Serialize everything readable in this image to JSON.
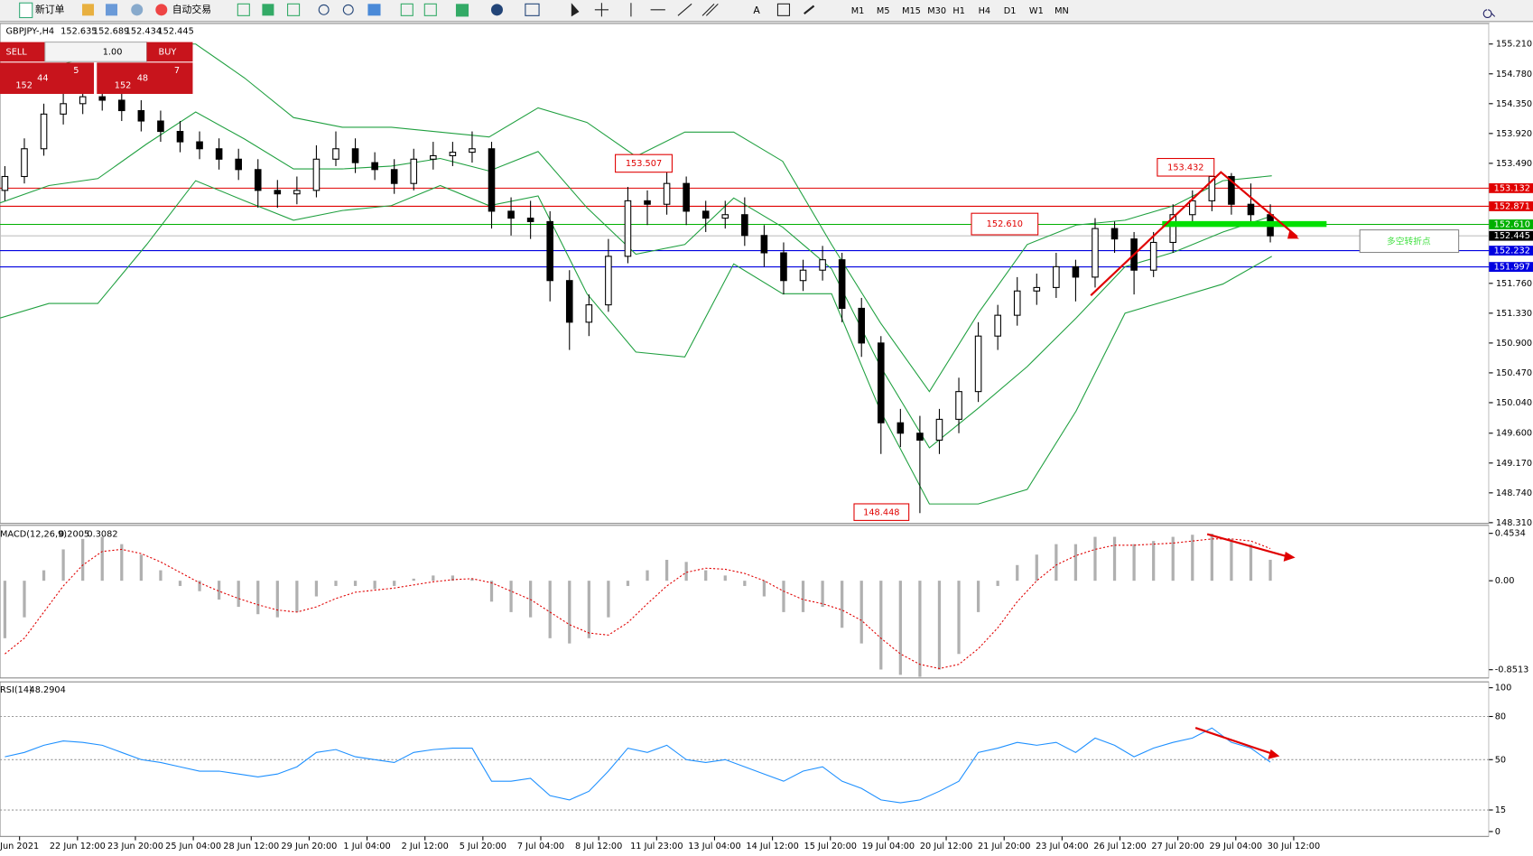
{
  "toolbar": {
    "new_order": "新订单",
    "auto_trading": "自动交易",
    "timeframes": [
      "M1",
      "M5",
      "M15",
      "M30",
      "H1",
      "H4",
      "D1",
      "W1",
      "MN"
    ]
  },
  "chart": {
    "symbol": "GBPJPY-,H4",
    "ohlc": [
      152.635,
      152.689,
      152.434,
      152.445
    ],
    "trade_panel": {
      "sell": "SELL",
      "buy": "BUY",
      "lots": "1.00",
      "sell_big": "152",
      "sell_pips": "44",
      "sell_frac": "5",
      "buy_big": "152",
      "buy_pips": "48",
      "buy_frac": "7"
    },
    "ylim": [
      148.3,
      155.506
    ],
    "price_ticks": [
      {
        "value": 155.21,
        "label": "155.210"
      },
      {
        "value": 154.78,
        "label": "154.780"
      },
      {
        "value": 154.35,
        "label": "154.350"
      },
      {
        "value": 153.92,
        "label": "153.920"
      },
      {
        "value": 153.49,
        "label": "153.490"
      },
      {
        "value": 151.76,
        "label": "151.760"
      },
      {
        "value": 151.33,
        "label": "151.330"
      },
      {
        "value": 150.9,
        "label": "150.900"
      },
      {
        "value": 150.47,
        "label": "150.470"
      },
      {
        "value": 150.04,
        "label": "150.040"
      },
      {
        "value": 149.6,
        "label": "149.600"
      },
      {
        "value": 149.17,
        "label": "149.170"
      },
      {
        "value": 148.74,
        "label": "148.740"
      },
      {
        "value": 148.31,
        "label": "148.310"
      }
    ],
    "levels": [
      {
        "value": 153.132,
        "color": "#e00000"
      },
      {
        "value": 152.871,
        "color": "#e00000"
      },
      {
        "value": 152.61,
        "label": "152.610",
        "color": "#00b000"
      },
      {
        "value": 152.445,
        "color": "#000000"
      },
      {
        "value": 152.232,
        "color": "#0000e0"
      },
      {
        "value": 151.997,
        "color": "#0000e0"
      }
    ],
    "annotations": [
      153.507,
      153.432,
      {
        "value": 152.61,
        "label": "152.610"
      },
      148.448
    ],
    "note": "多空转折点",
    "time_labels": [
      "Jun 2021",
      "22 Jun 12:00",
      "23 Jun 20:00",
      "25 Jun 04:00",
      "28 Jun 12:00",
      "29 Jun 20:00",
      "1 Jul 04:00",
      "2 Jul 12:00",
      "5 Jul 20:00",
      "7 Jul 04:00",
      "8 Jul 12:00",
      "11 Jul 23:00",
      "13 Jul 04:00",
      "14 Jul 12:00",
      "15 Jul 20:00",
      "19 Jul 04:00",
      "20 Jul 12:00",
      "21 Jul 20:00",
      "23 Jul 04:00",
      "26 Jul 12:00",
      "27 Jul 20:00",
      "29 Jul 04:00",
      "30 Jul 12:00"
    ],
    "bars": [
      [
        153.1,
        153.45,
        152.95,
        153.3
      ],
      [
        153.3,
        153.85,
        153.2,
        153.7
      ],
      [
        153.7,
        154.35,
        153.6,
        154.2
      ],
      [
        154.2,
        154.5,
        154.05,
        154.35
      ],
      [
        154.35,
        154.6,
        154.2,
        154.45
      ],
      [
        154.45,
        154.65,
        154.25,
        154.4
      ],
      [
        154.4,
        154.5,
        154.1,
        154.25
      ],
      [
        154.25,
        154.4,
        153.95,
        154.1
      ],
      [
        154.1,
        154.25,
        153.8,
        153.95
      ],
      [
        153.95,
        154.1,
        153.65,
        153.8
      ],
      [
        153.8,
        153.95,
        153.55,
        153.7
      ],
      [
        153.7,
        153.85,
        153.4,
        153.55
      ],
      [
        153.55,
        153.7,
        153.25,
        153.4
      ],
      [
        153.4,
        153.55,
        152.85,
        153.1
      ],
      [
        153.1,
        153.25,
        152.85,
        153.05
      ],
      [
        153.05,
        153.3,
        152.9,
        153.1
      ],
      [
        153.1,
        153.75,
        153.0,
        153.55
      ],
      [
        153.55,
        153.95,
        153.45,
        153.7
      ],
      [
        153.7,
        153.85,
        153.35,
        153.5
      ],
      [
        153.5,
        153.65,
        153.25,
        153.4
      ],
      [
        153.4,
        153.55,
        153.05,
        153.2
      ],
      [
        153.2,
        153.7,
        153.1,
        153.55
      ],
      [
        153.55,
        153.8,
        153.4,
        153.6
      ],
      [
        153.6,
        153.8,
        153.45,
        153.65
      ],
      [
        153.65,
        153.95,
        153.5,
        153.7
      ],
      [
        153.7,
        153.8,
        152.55,
        152.8
      ],
      [
        152.8,
        153.0,
        152.45,
        152.7
      ],
      [
        152.7,
        152.95,
        152.4,
        152.65
      ],
      [
        152.65,
        152.8,
        151.5,
        151.8
      ],
      [
        151.8,
        151.95,
        150.8,
        151.2
      ],
      [
        151.2,
        151.6,
        151.0,
        151.45
      ],
      [
        151.45,
        152.4,
        151.35,
        152.15
      ],
      [
        152.15,
        153.15,
        152.05,
        152.95
      ],
      [
        152.95,
        153.1,
        152.6,
        152.9
      ],
      [
        152.9,
        153.507,
        152.75,
        153.2
      ],
      [
        153.2,
        153.3,
        152.6,
        152.8
      ],
      [
        152.8,
        152.95,
        152.5,
        152.7
      ],
      [
        152.7,
        152.95,
        152.55,
        152.75
      ],
      [
        152.75,
        153.0,
        152.3,
        152.45
      ],
      [
        152.45,
        152.6,
        152.0,
        152.2
      ],
      [
        152.2,
        152.35,
        151.6,
        151.8
      ],
      [
        151.8,
        152.1,
        151.65,
        151.95
      ],
      [
        151.95,
        152.3,
        151.8,
        152.1
      ],
      [
        152.1,
        152.2,
        151.2,
        151.4
      ],
      [
        151.4,
        151.55,
        150.7,
        150.9
      ],
      [
        150.9,
        151.0,
        149.3,
        149.75
      ],
      [
        149.75,
        149.95,
        149.4,
        149.6
      ],
      [
        149.6,
        149.85,
        148.448,
        149.5
      ],
      [
        149.5,
        149.95,
        149.3,
        149.8
      ],
      [
        149.8,
        150.4,
        149.6,
        150.2
      ],
      [
        150.2,
        151.2,
        150.05,
        151.0
      ],
      [
        151.0,
        151.45,
        150.8,
        151.3
      ],
      [
        151.3,
        151.85,
        151.15,
        151.65
      ],
      [
        151.65,
        151.9,
        151.45,
        151.7
      ],
      [
        151.7,
        152.2,
        151.55,
        152.0
      ],
      [
        152.0,
        152.1,
        151.5,
        151.85
      ],
      [
        151.85,
        152.7,
        151.7,
        152.55
      ],
      [
        152.55,
        152.65,
        152.2,
        152.4
      ],
      [
        152.4,
        152.5,
        151.6,
        151.95
      ],
      [
        151.95,
        152.5,
        151.85,
        152.35
      ],
      [
        152.35,
        152.9,
        152.2,
        152.75
      ],
      [
        152.75,
        153.1,
        152.6,
        152.95
      ],
      [
        152.95,
        153.432,
        152.8,
        153.3
      ],
      [
        153.3,
        153.35,
        152.75,
        152.9
      ],
      [
        152.9,
        153.2,
        152.6,
        152.75
      ],
      [
        152.75,
        152.9,
        152.35,
        152.445
      ]
    ],
    "bollinger": {
      "upper": [
        154.58,
        154.86,
        155.07,
        155.21,
        155.21,
        154.72,
        154.15,
        154.01,
        154.01,
        153.94,
        153.87,
        154.29,
        154.08,
        153.59,
        153.94,
        153.94,
        153.52,
        152.32,
        151.19,
        150.2,
        151.33,
        152.32,
        152.6,
        152.67,
        152.88,
        153.24,
        153.31
      ],
      "middle": [
        152.92,
        153.17,
        153.27,
        153.77,
        154.23,
        153.84,
        153.41,
        153.41,
        153.45,
        153.56,
        153.38,
        153.66,
        152.85,
        152.18,
        152.32,
        152.99,
        152.57,
        151.97,
        150.56,
        149.39,
        149.96,
        150.56,
        151.26,
        152.0,
        152.21,
        152.5,
        152.73
      ],
      "lower": [
        151.26,
        151.47,
        151.47,
        152.32,
        153.24,
        152.95,
        152.67,
        152.81,
        152.88,
        153.17,
        152.88,
        153.02,
        151.61,
        150.77,
        150.7,
        152.04,
        151.61,
        151.61,
        149.92,
        148.58,
        148.58,
        148.79,
        149.92,
        151.33,
        151.54,
        151.75,
        152.15
      ]
    },
    "macd": {
      "name": "MACD(12,26,9)",
      "main_value": 0.2005,
      "signal_value": 0.3082,
      "ylim": [
        -0.93,
        0.53
      ],
      "ticks": [
        0.4534,
        {
          "value": 0,
          "label": "0.00"
        },
        -0.8513
      ],
      "histogram": [
        -0.55,
        -0.35,
        0.1,
        0.3,
        0.4,
        0.42,
        0.35,
        0.25,
        0.1,
        -0.05,
        -0.1,
        -0.18,
        -0.25,
        -0.32,
        -0.35,
        -0.3,
        -0.15,
        -0.05,
        -0.05,
        -0.08,
        -0.05,
        0.02,
        0.05,
        0.05,
        0.02,
        -0.2,
        -0.3,
        -0.35,
        -0.55,
        -0.6,
        -0.55,
        -0.35,
        -0.05,
        0.1,
        0.2,
        0.18,
        0.1,
        0.05,
        -0.05,
        -0.15,
        -0.3,
        -0.3,
        -0.25,
        -0.45,
        -0.6,
        -0.85,
        -0.9,
        -0.92,
        -0.85,
        -0.7,
        -0.3,
        -0.05,
        0.15,
        0.25,
        0.35,
        0.35,
        0.42,
        0.42,
        0.35,
        0.38,
        0.42,
        0.44,
        0.45,
        0.4,
        0.35,
        0.2005
      ],
      "signal": [
        -0.7,
        -0.55,
        -0.3,
        -0.05,
        0.15,
        0.28,
        0.3,
        0.26,
        0.18,
        0.08,
        -0.02,
        -0.1,
        -0.17,
        -0.23,
        -0.28,
        -0.3,
        -0.25,
        -0.17,
        -0.11,
        -0.09,
        -0.07,
        -0.04,
        -0.01,
        0.01,
        0.02,
        -0.02,
        -0.1,
        -0.18,
        -0.3,
        -0.42,
        -0.5,
        -0.52,
        -0.4,
        -0.22,
        -0.05,
        0.08,
        0.12,
        0.11,
        0.07,
        0.0,
        -0.1,
        -0.18,
        -0.22,
        -0.28,
        -0.38,
        -0.55,
        -0.7,
        -0.8,
        -0.84,
        -0.8,
        -0.65,
        -0.45,
        -0.2,
        0.0,
        0.15,
        0.24,
        0.3,
        0.34,
        0.34,
        0.35,
        0.36,
        0.38,
        0.4,
        0.4,
        0.38,
        0.3082
      ]
    },
    "rsi": {
      "name": "RSI(14)",
      "value": 48.2904,
      "ylim": [
        0,
        100
      ],
      "ticks": [
        100,
        80,
        50,
        15,
        0
      ],
      "levels": [
        80,
        50,
        15
      ],
      "values": [
        52,
        55,
        60,
        63,
        62,
        60,
        55,
        50,
        48,
        45,
        42,
        42,
        40,
        38,
        40,
        45,
        55,
        57,
        52,
        50,
        48,
        55,
        57,
        58,
        58,
        35,
        35,
        37,
        25,
        22,
        28,
        42,
        58,
        55,
        60,
        50,
        48,
        50,
        45,
        40,
        35,
        42,
        45,
        35,
        30,
        22,
        20,
        22,
        28,
        35,
        55,
        58,
        62,
        60,
        62,
        55,
        65,
        60,
        52,
        58,
        62,
        65,
        72,
        62,
        58,
        48.2904
      ]
    }
  }
}
